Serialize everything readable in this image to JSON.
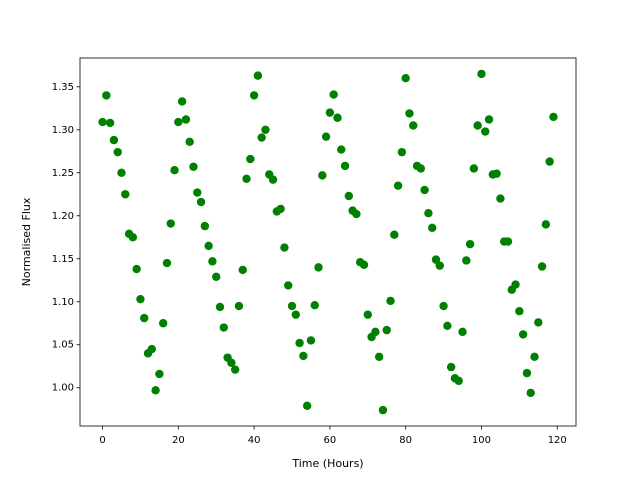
{
  "chart_data": {
    "type": "scatter",
    "xlabel": "Time (Hours)",
    "ylabel": "Normalised Flux",
    "color": "#008000",
    "x": [
      0,
      1,
      2,
      3,
      4,
      5,
      6,
      7,
      8,
      9,
      10,
      11,
      12,
      13,
      14,
      15,
      16,
      17,
      18,
      19,
      20,
      21,
      22,
      23,
      24,
      25,
      26,
      27,
      28,
      29,
      30,
      31,
      32,
      33,
      34,
      35,
      36,
      37,
      38,
      39,
      40,
      41,
      42,
      43,
      44,
      45,
      46,
      47,
      48,
      49,
      50,
      51,
      52,
      53,
      54,
      55,
      56,
      57,
      58,
      59,
      60,
      61,
      62,
      63,
      64,
      65,
      66,
      67,
      68,
      69,
      70,
      71,
      72,
      73,
      74,
      75,
      76,
      77,
      78,
      79,
      80,
      81,
      82,
      83,
      84,
      85,
      86,
      87,
      88,
      89,
      90,
      91,
      92,
      93,
      94,
      95,
      96,
      97,
      98,
      99,
      100,
      101,
      102,
      103,
      104,
      105,
      106,
      107,
      108,
      109,
      110,
      111,
      112,
      113,
      114,
      115,
      116,
      117,
      118,
      119
    ],
    "values": [
      1.309,
      1.34,
      1.308,
      1.288,
      1.274,
      1.25,
      1.225,
      1.179,
      1.175,
      1.138,
      1.103,
      1.081,
      1.04,
      1.045,
      0.997,
      1.016,
      1.075,
      1.145,
      1.191,
      1.253,
      1.309,
      1.333,
      1.312,
      1.286,
      1.257,
      1.227,
      1.216,
      1.188,
      1.165,
      1.147,
      1.129,
      1.094,
      1.07,
      1.035,
      1.029,
      1.021,
      1.095,
      1.137,
      1.243,
      1.266,
      1.34,
      1.363,
      1.291,
      1.3,
      1.248,
      1.242,
      1.205,
      1.208,
      1.163,
      1.119,
      1.095,
      1.085,
      1.052,
      1.037,
      0.979,
      1.055,
      1.096,
      1.14,
      1.247,
      1.292,
      1.32,
      1.341,
      1.314,
      1.277,
      1.258,
      1.223,
      1.206,
      1.202,
      1.146,
      1.143,
      1.085,
      1.059,
      1.065,
      1.036,
      0.974,
      1.067,
      1.101,
      1.178,
      1.235,
      1.274,
      1.36,
      1.319,
      1.305,
      1.258,
      1.255,
      1.23,
      1.203,
      1.186,
      1.149,
      1.142,
      1.095,
      1.072,
      1.024,
      1.011,
      1.008,
      1.065,
      1.148,
      1.167,
      1.255,
      1.305,
      1.365,
      1.298,
      1.312,
      1.248,
      1.249,
      1.22,
      1.17,
      1.17,
      1.114,
      1.12,
      1.089,
      1.062,
      1.017,
      0.994,
      1.036,
      1.076,
      1.141,
      1.19,
      1.263,
      1.315
    ],
    "xlim": [
      -5.95,
      124.95
    ],
    "xticks": [
      0,
      20,
      40,
      60,
      80,
      100,
      120
    ],
    "ylim": [
      0.9555,
      1.3835
    ],
    "yticks": [
      {
        "value": 1.0,
        "label": "1.00"
      },
      {
        "value": 1.05,
        "label": "1.05"
      },
      {
        "value": 1.1,
        "label": "1.10"
      },
      {
        "value": 1.15,
        "label": "1.15"
      },
      {
        "value": 1.2,
        "label": "1.20"
      },
      {
        "value": 1.25,
        "label": "1.25"
      },
      {
        "value": 1.3,
        "label": "1.30"
      },
      {
        "value": 1.35,
        "label": "1.35"
      }
    ]
  }
}
